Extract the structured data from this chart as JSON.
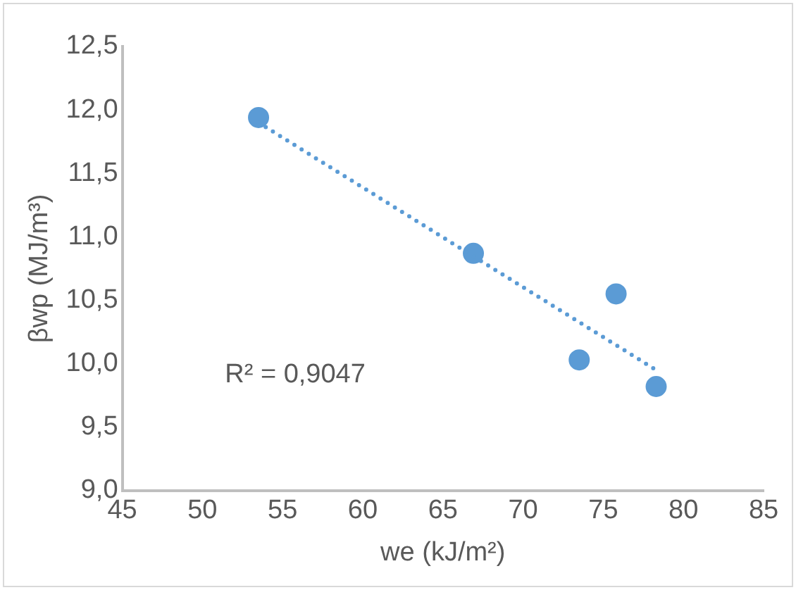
{
  "chart_data": {
    "type": "scatter",
    "xlabel": "we (kJ/m²)",
    "ylabel": "βwp (MJ/m³)",
    "series": [
      {
        "type": "scatter",
        "color": "#5b9bd5",
        "x": [
          53.5,
          66.9,
          75.8,
          73.5,
          78.3
        ],
        "values": [
          11.94,
          10.87,
          10.55,
          10.03,
          9.82
        ]
      },
      {
        "type": "line",
        "color": "#5b9bd5",
        "line_style": "dotted",
        "marker": "none",
        "x": [
          53.5,
          78.3
        ],
        "values": [
          11.9,
          9.95
        ]
      }
    ],
    "xlim": [
      45,
      85
    ],
    "xticks": [
      45,
      50,
      55,
      60,
      65,
      70,
      75,
      80,
      85
    ],
    "ylim": [
      9,
      12.5
    ],
    "yticks": [
      {
        "value": 9,
        "label": "9,0"
      },
      {
        "value": 9.5,
        "label": "9,5"
      },
      {
        "value": 10,
        "label": "10,0"
      },
      {
        "value": 10.5,
        "label": "10,5"
      },
      {
        "value": 11,
        "label": "11,0"
      },
      {
        "value": 11.5,
        "label": "11,5"
      },
      {
        "value": 12,
        "label": "12,0"
      },
      {
        "value": 12.5,
        "label": "12,5"
      }
    ],
    "grid": false,
    "legend": false,
    "marker": "circle",
    "annotations": [
      "R² = 0,9047"
    ]
  }
}
